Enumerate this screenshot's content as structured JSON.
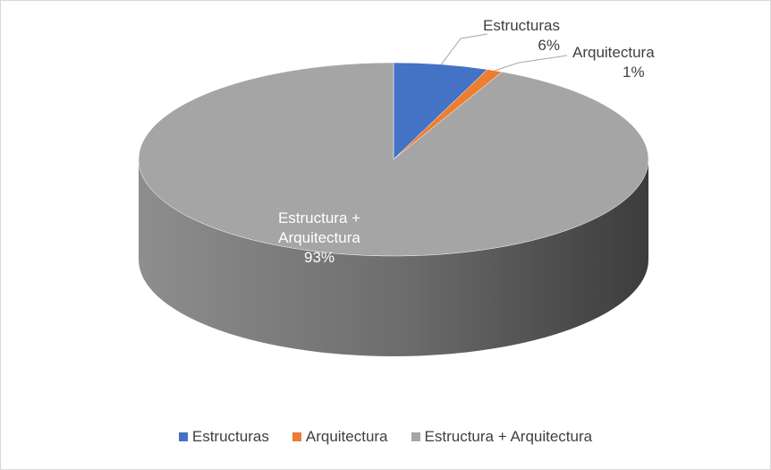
{
  "chart_data": {
    "type": "pie",
    "categories": [
      "Estructuras",
      "Arquitectura",
      "Estructura + Arquitectura"
    ],
    "values": [
      6,
      1,
      93
    ],
    "value_labels": [
      "6%",
      "1%",
      "93%"
    ],
    "colors": [
      "#4472c4",
      "#ed7d31",
      "#a5a5a5"
    ],
    "legend": "bottom"
  }
}
